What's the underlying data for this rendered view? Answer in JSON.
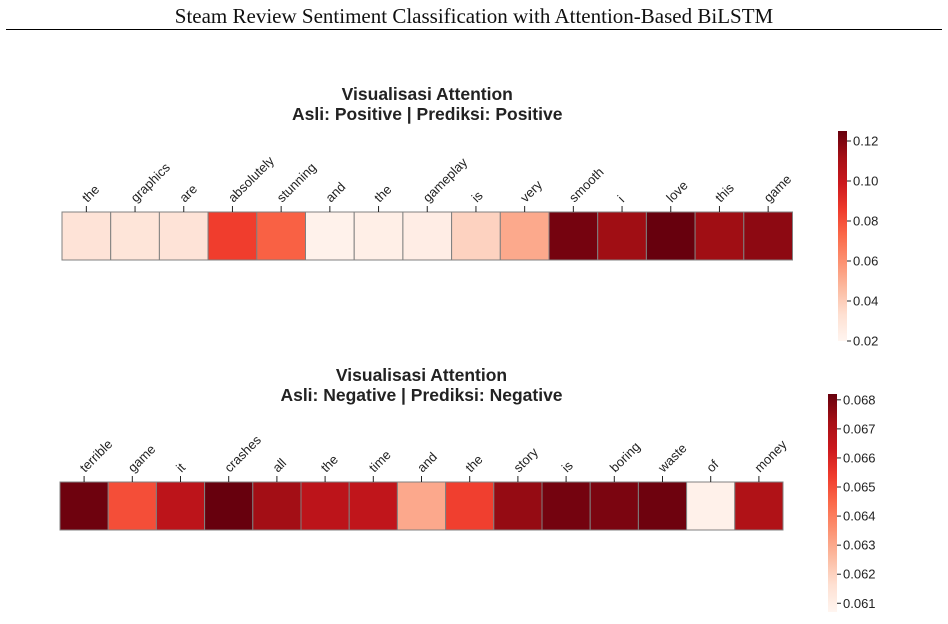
{
  "page_header": {
    "title": "Steam Review Sentiment Classification with Attention-Based BiLSTM"
  },
  "colors": {
    "cmap_low": "#fff5f0",
    "cmap_mid": "#fb6a4a",
    "cmap_high": "#67000d",
    "cell_border": "#808080"
  },
  "chart_data": [
    {
      "type": "heatmap",
      "title": "Visualisasi Attention",
      "subtitle": "Asli: Positive | Prediksi: Positive",
      "tokens": [
        "the",
        "graphics",
        "are",
        "absolutely",
        "stunning",
        "and",
        "the",
        "gameplay",
        "is",
        "very",
        "smooth",
        "i",
        "love",
        "this",
        "game"
      ],
      "values": [
        0.031,
        0.03,
        0.031,
        0.085,
        0.075,
        0.022,
        0.024,
        0.025,
        0.038,
        0.052,
        0.122,
        0.113,
        0.125,
        0.113,
        0.117
      ],
      "colorbar": {
        "min": 0.02,
        "max": 0.125,
        "ticks": [
          0.02,
          0.04,
          0.06,
          0.08,
          0.1,
          0.12
        ],
        "tick_labels": [
          "0.02",
          "0.04",
          "0.06",
          "0.08",
          "0.10",
          "0.12"
        ]
      }
    },
    {
      "type": "heatmap",
      "title": "Visualisasi Attention",
      "subtitle": "Asli: Negative | Prediksi: Negative",
      "tokens": [
        "terrible",
        "game",
        "it",
        "crashes",
        "all",
        "the",
        "time",
        "and",
        "the",
        "story",
        "is",
        "boring",
        "waste",
        "of",
        "money"
      ],
      "values": [
        0.0681,
        0.065,
        0.0667,
        0.0682,
        0.0673,
        0.0667,
        0.0666,
        0.063,
        0.0653,
        0.0675,
        0.068,
        0.0679,
        0.0681,
        0.0609,
        0.067
      ],
      "colorbar": {
        "min": 0.0607,
        "max": 0.0682,
        "ticks": [
          0.061,
          0.062,
          0.063,
          0.064,
          0.065,
          0.066,
          0.067,
          0.068
        ],
        "tick_labels": [
          "0.061",
          "0.062",
          "0.063",
          "0.064",
          "0.065",
          "0.066",
          "0.067",
          "0.068"
        ]
      }
    }
  ]
}
